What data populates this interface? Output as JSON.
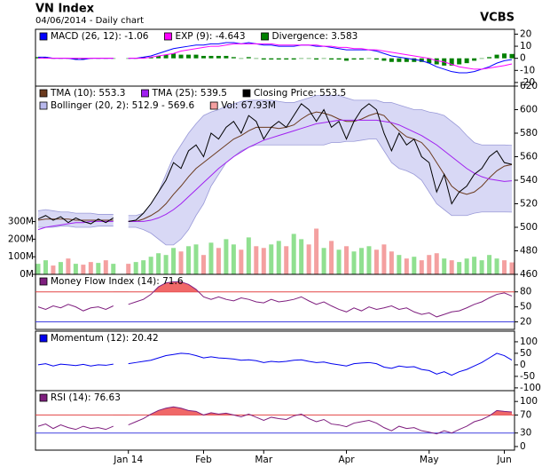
{
  "header": {
    "title": "VN Index",
    "subtitle": "04/06/2014 - Daily chart",
    "source": "VCBS"
  },
  "chart_data": [
    {
      "type": "line",
      "ylim": [
        -23,
        24
      ],
      "yticks": [
        20,
        10,
        0,
        -10,
        -20
      ],
      "series": [
        {
          "name": "MACD (26, 12): -1.06",
          "kind": "line",
          "color": "#0000ff",
          "values": [
            1,
            1,
            0,
            0,
            0,
            -1,
            -1,
            0,
            0,
            0,
            0,
            null,
            0,
            0,
            1,
            2,
            4,
            6,
            8,
            9,
            10,
            11,
            11,
            12,
            12,
            13,
            13,
            12,
            13,
            12,
            11,
            11,
            10,
            10,
            10,
            11,
            11,
            10,
            10,
            9,
            8,
            7,
            7,
            7,
            7,
            6,
            4,
            2,
            1,
            0,
            -1,
            -2,
            -4,
            -7,
            -9,
            -11,
            -12,
            -12,
            -11,
            -9,
            -7,
            -4,
            -2,
            -1.06
          ]
        },
        {
          "name": "EXP (9): -4.643",
          "kind": "line",
          "color": "#ff00ff",
          "values": [
            0,
            0,
            0,
            0,
            0,
            0,
            0,
            0,
            0,
            0,
            0,
            null,
            0,
            0,
            0,
            1,
            2,
            3,
            4,
            6,
            7,
            8,
            9,
            10,
            10,
            11,
            12,
            12,
            12,
            12,
            12,
            12,
            11,
            11,
            11,
            11,
            11,
            11,
            10,
            10,
            9,
            9,
            8,
            8,
            7,
            7,
            6,
            5,
            4,
            3,
            2,
            1,
            0,
            -2,
            -3,
            -5,
            -7,
            -8,
            -9,
            -9,
            -8,
            -7,
            -6,
            -4.643
          ]
        },
        {
          "name": "Divergence: 3.583",
          "kind": "bar",
          "color": "#008000",
          "values": [
            1,
            1,
            0,
            0,
            0,
            -1,
            -1,
            0,
            0,
            0,
            0,
            null,
            0,
            0,
            1,
            1,
            2,
            3,
            4,
            3,
            3,
            3,
            2,
            2,
            2,
            2,
            1,
            0,
            1,
            0,
            -1,
            -1,
            -1,
            -1,
            -1,
            0,
            0,
            -1,
            0,
            -1,
            -1,
            -2,
            -1,
            -1,
            0,
            -1,
            -2,
            -3,
            -3,
            -3,
            -3,
            -3,
            -4,
            -5,
            -6,
            -6,
            -5,
            -4,
            -2,
            0,
            1,
            3,
            4,
            3.583
          ]
        }
      ]
    },
    {
      "type": "line",
      "ylim": [
        460,
        620
      ],
      "yticks": [
        460,
        480,
        500,
        520,
        540,
        560,
        580,
        600,
        620
      ],
      "y2lim": [
        0,
        1070
      ],
      "y2ticks": [
        {
          "value": 0,
          "label": "0M"
        },
        {
          "value": 100,
          "label": "100M"
        },
        {
          "value": 200,
          "label": "200M"
        },
        {
          "value": 300,
          "label": "300M"
        }
      ],
      "series": [
        {
          "name": "TMA (10): 553.3",
          "kind": "line",
          "color": "#6b3a1e",
          "values": [
            506,
            507,
            507,
            507,
            507,
            506,
            506,
            506,
            506,
            506,
            506,
            null,
            505,
            505,
            507,
            510,
            514,
            520,
            528,
            535,
            543,
            550,
            555,
            560,
            565,
            570,
            575,
            578,
            582,
            585,
            585,
            585,
            584,
            585,
            587,
            592,
            596,
            598,
            597,
            595,
            592,
            590,
            590,
            592,
            595,
            597,
            595,
            588,
            582,
            577,
            575,
            572,
            565,
            555,
            545,
            535,
            530,
            528,
            530,
            535,
            542,
            548,
            552,
            553.3
          ]
        },
        {
          "name": "TMA (25): 539.5",
          "kind": "line",
          "color": "#a020f0",
          "values": [
            498,
            500,
            501,
            502,
            503,
            504,
            504,
            505,
            505,
            505,
            505,
            null,
            505,
            505,
            505,
            506,
            508,
            511,
            515,
            520,
            526,
            532,
            538,
            544,
            550,
            555,
            560,
            564,
            568,
            571,
            574,
            576,
            578,
            580,
            582,
            584,
            586,
            588,
            589,
            590,
            591,
            591,
            591,
            591,
            591,
            591,
            590,
            589,
            587,
            584,
            581,
            578,
            574,
            570,
            565,
            560,
            555,
            550,
            546,
            543,
            541,
            540,
            539,
            539.5
          ]
        },
        {
          "name": "Closing Price: 553.5",
          "kind": "line",
          "color": "#000000",
          "values": [
            507,
            510,
            506,
            509,
            504,
            508,
            505,
            503,
            507,
            504,
            508,
            null,
            505,
            506,
            512,
            520,
            530,
            540,
            555,
            550,
            565,
            570,
            560,
            580,
            575,
            585,
            590,
            580,
            595,
            590,
            575,
            585,
            590,
            585,
            595,
            605,
            600,
            590,
            600,
            585,
            590,
            575,
            590,
            600,
            605,
            600,
            580,
            565,
            580,
            570,
            575,
            560,
            555,
            530,
            545,
            520,
            530,
            535,
            545,
            550,
            560,
            565,
            555,
            553.5
          ]
        },
        {
          "name": "Bollinger (20, 2): 512.9 - 569.6",
          "kind": "band",
          "color": "#b8b8ec",
          "values": [
            514,
            515,
            514,
            513,
            513,
            512,
            512,
            512,
            511,
            511,
            511,
            null,
            510,
            510,
            512,
            520,
            530,
            545,
            560,
            570,
            580,
            588,
            595,
            598,
            600,
            603,
            605,
            607,
            608,
            608,
            608,
            608,
            607,
            606,
            606,
            608,
            610,
            612,
            612,
            612,
            612,
            610,
            608,
            608,
            608,
            608,
            606,
            606,
            604,
            602,
            600,
            600,
            598,
            597,
            595,
            590,
            585,
            578,
            572,
            570,
            570,
            570,
            570,
            569.6
          ],
          "lower": [
            500,
            500,
            500,
            501,
            501,
            500,
            500,
            500,
            501,
            501,
            501,
            null,
            500,
            500,
            498,
            495,
            490,
            485,
            485,
            490,
            498,
            510,
            520,
            535,
            545,
            555,
            560,
            565,
            568,
            570,
            570,
            570,
            570,
            570,
            570,
            570,
            570,
            570,
            570,
            572,
            572,
            573,
            573,
            574,
            575,
            575,
            565,
            555,
            550,
            548,
            545,
            540,
            530,
            520,
            515,
            510,
            510,
            510,
            512,
            513,
            513,
            513,
            513,
            512.9
          ]
        },
        {
          "name": "Vol: 67.93M",
          "kind": "bar",
          "axis": "y2",
          "color": "#f4a0a0",
          "up_color": "#90e090",
          "down_color": "#f4a0a0",
          "values": [
            60,
            80,
            50,
            70,
            90,
            60,
            55,
            70,
            65,
            80,
            60,
            null,
            60,
            70,
            80,
            100,
            120,
            110,
            150,
            130,
            160,
            170,
            110,
            180,
            150,
            200,
            170,
            140,
            210,
            160,
            150,
            170,
            190,
            160,
            230,
            200,
            170,
            260,
            150,
            190,
            140,
            160,
            130,
            150,
            160,
            140,
            170,
            130,
            110,
            90,
            100,
            80,
            110,
            120,
            90,
            80,
            70,
            90,
            100,
            80,
            110,
            90,
            80,
            67.93
          ]
        }
      ]
    },
    {
      "type": "line",
      "ylim": [
        5,
        115
      ],
      "yticks": [
        80,
        50,
        20
      ],
      "levels": [
        80,
        20
      ],
      "level_colors": [
        "#e04040",
        "#4040e0"
      ],
      "series": [
        {
          "name": "Money Flow Index (14): 71.6",
          "kind": "line",
          "color": "#7f1f7f",
          "fill_color": "#f06868",
          "fill_above_level": true,
          "values": [
            50,
            45,
            52,
            48,
            55,
            50,
            42,
            48,
            50,
            45,
            52,
            null,
            55,
            60,
            65,
            75,
            90,
            98,
            100,
            100,
            95,
            85,
            70,
            65,
            70,
            65,
            62,
            68,
            65,
            60,
            58,
            65,
            60,
            62,
            65,
            70,
            62,
            55,
            60,
            52,
            45,
            40,
            48,
            42,
            50,
            45,
            48,
            52,
            45,
            48,
            40,
            35,
            38,
            30,
            35,
            40,
            42,
            48,
            55,
            60,
            68,
            75,
            78,
            71.6
          ]
        }
      ]
    },
    {
      "type": "line",
      "ylim": [
        -112,
        146
      ],
      "yticks": [
        100,
        50,
        0,
        -50,
        -100
      ],
      "series": [
        {
          "name": "Momentum (12): 20.42",
          "kind": "line",
          "color": "#0000ee",
          "values": [
            0,
            5,
            -5,
            3,
            0,
            -3,
            2,
            -5,
            0,
            -2,
            3,
            null,
            5,
            10,
            15,
            20,
            30,
            40,
            45,
            50,
            48,
            40,
            30,
            35,
            30,
            28,
            25,
            20,
            22,
            18,
            10,
            15,
            12,
            15,
            20,
            22,
            15,
            10,
            12,
            5,
            0,
            -5,
            5,
            8,
            10,
            5,
            -10,
            -15,
            -5,
            -10,
            -8,
            -20,
            -25,
            -40,
            -30,
            -45,
            -30,
            -20,
            -5,
            10,
            30,
            50,
            40,
            20.42
          ]
        }
      ]
    },
    {
      "type": "line",
      "ylim": [
        -8,
        124
      ],
      "yticks": [
        100,
        70,
        30,
        0
      ],
      "levels": [
        70,
        30
      ],
      "level_colors": [
        "#e04040",
        "#4040e0"
      ],
      "categories": [
        null,
        null,
        null,
        null,
        null,
        null,
        null,
        null,
        null,
        null,
        null,
        null,
        "Jan 14",
        null,
        null,
        null,
        null,
        null,
        null,
        null,
        null,
        null,
        "Feb",
        null,
        null,
        null,
        null,
        null,
        null,
        null,
        "Mar",
        null,
        null,
        null,
        null,
        null,
        null,
        null,
        null,
        null,
        null,
        "Apr",
        null,
        null,
        null,
        null,
        null,
        null,
        null,
        null,
        null,
        null,
        "May",
        null,
        null,
        null,
        null,
        null,
        null,
        null,
        null,
        null,
        "Jun",
        null
      ],
      "series": [
        {
          "name": "RSI (14): 76.63",
          "kind": "line",
          "color": "#7f1f7f",
          "fill_color": "#f06868",
          "fill_above_level": true,
          "values": [
            45,
            50,
            40,
            48,
            42,
            38,
            45,
            40,
            42,
            38,
            45,
            null,
            48,
            55,
            62,
            72,
            80,
            85,
            88,
            85,
            80,
            78,
            70,
            75,
            72,
            74,
            70,
            66,
            72,
            65,
            58,
            65,
            62,
            60,
            68,
            72,
            62,
            55,
            60,
            50,
            48,
            44,
            52,
            55,
            58,
            52,
            42,
            35,
            45,
            40,
            42,
            35,
            32,
            28,
            35,
            30,
            38,
            45,
            55,
            60,
            68,
            80,
            78,
            76.63
          ]
        }
      ]
    }
  ]
}
